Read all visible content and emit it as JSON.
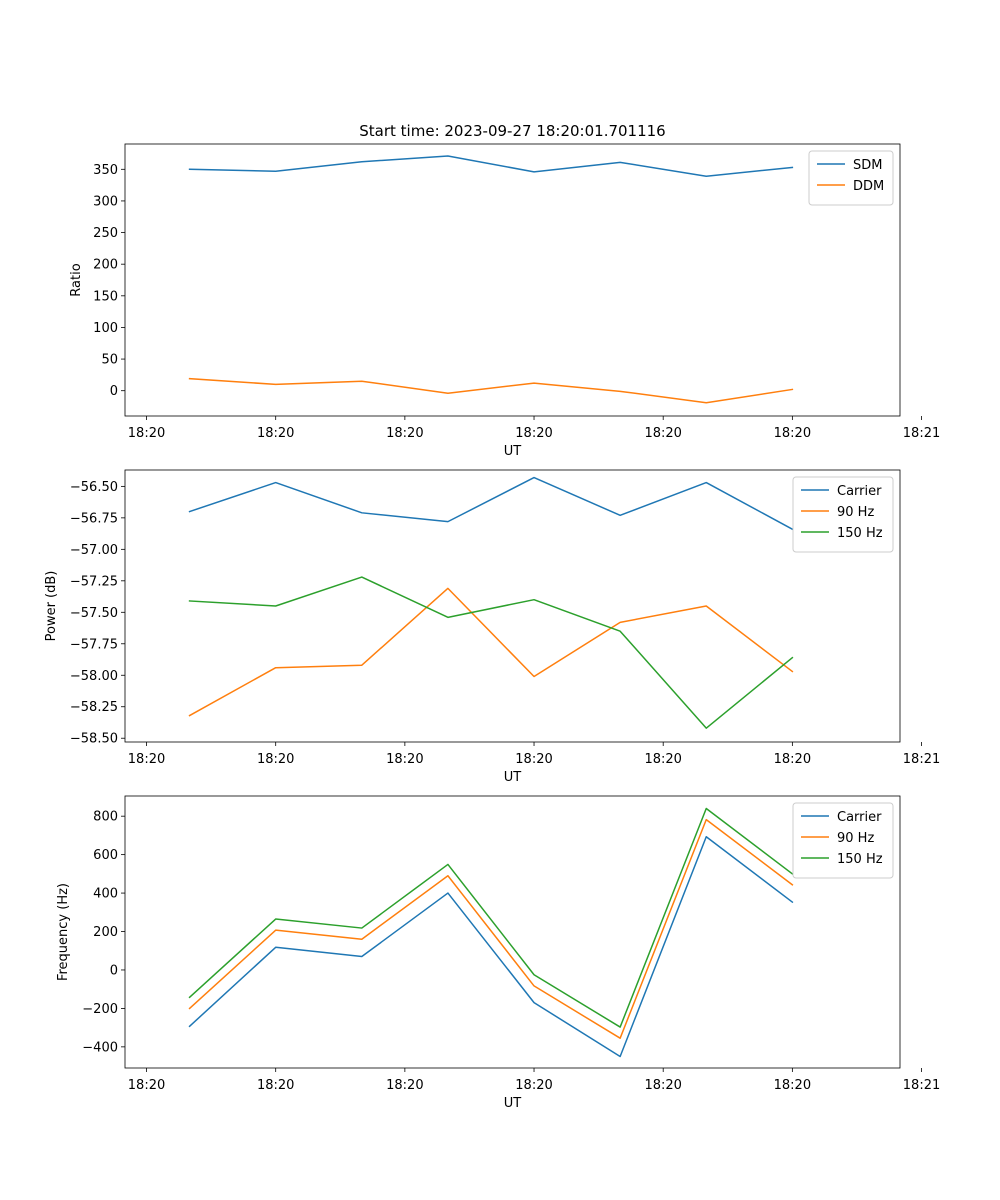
{
  "chart_data": [
    {
      "type": "line",
      "title": "Start time: 2023-09-27 18:20:01.701116",
      "xlabel": "UT",
      "ylabel": "Ratio",
      "x": [
        1,
        2,
        3,
        4,
        5,
        6,
        7,
        8
      ],
      "xlim": [
        0.25,
        9.25
      ],
      "x_ticks": [
        0.5,
        2.0,
        3.5,
        5.0,
        6.5,
        8.0,
        9.5
      ],
      "x_tick_labels": [
        "18:20",
        "18:20",
        "18:20",
        "18:20",
        "18:20",
        "18:20",
        "18:21"
      ],
      "ylim": [
        -40,
        390
      ],
      "y_ticks": [
        0,
        50,
        100,
        150,
        200,
        250,
        300,
        350
      ],
      "y_tick_labels": [
        "0",
        "50",
        "100",
        "150",
        "200",
        "250",
        "300",
        "350"
      ],
      "legend": "top-right",
      "series": [
        {
          "name": "SDM",
          "color": "#1f77b4",
          "values": [
            350,
            347,
            362,
            371,
            346,
            361,
            339,
            353
          ]
        },
        {
          "name": "DDM",
          "color": "#ff7f0e",
          "values": [
            19,
            10,
            15,
            -4,
            12,
            -1,
            -19,
            2
          ]
        }
      ]
    },
    {
      "type": "line",
      "title": "",
      "xlabel": "UT",
      "ylabel": "Power (dB)",
      "x": [
        1,
        2,
        3,
        4,
        5,
        6,
        7,
        8
      ],
      "xlim": [
        0.25,
        9.25
      ],
      "x_ticks": [
        0.5,
        2.0,
        3.5,
        5.0,
        6.5,
        8.0,
        9.5
      ],
      "x_tick_labels": [
        "18:20",
        "18:20",
        "18:20",
        "18:20",
        "18:20",
        "18:20",
        "18:21"
      ],
      "ylim": [
        -58.53,
        -56.37
      ],
      "y_ticks": [
        -58.5,
        -58.25,
        -58.0,
        -57.75,
        -57.5,
        -57.25,
        -57.0,
        -56.75,
        -56.5
      ],
      "y_tick_labels": [
        "−58.50",
        "−58.25",
        "−58.00",
        "−57.75",
        "−57.50",
        "−57.25",
        "−57.00",
        "−56.75",
        "−56.50"
      ],
      "legend": "top-right",
      "series": [
        {
          "name": "Carrier",
          "color": "#1f77b4",
          "values": [
            -56.7,
            -56.47,
            -56.71,
            -56.78,
            -56.43,
            -56.73,
            -56.47,
            -56.84
          ]
        },
        {
          "name": "90 Hz",
          "color": "#ff7f0e",
          "values": [
            -58.32,
            -57.94,
            -57.92,
            -57.31,
            -58.01,
            -57.58,
            -57.45,
            -57.97
          ]
        },
        {
          "name": "150 Hz",
          "color": "#2ca02c",
          "values": [
            -57.41,
            -57.45,
            -57.22,
            -57.54,
            -57.4,
            -57.65,
            -58.42,
            -57.86
          ]
        }
      ]
    },
    {
      "type": "line",
      "title": "",
      "xlabel": "UT",
      "ylabel": "Frequency (Hz)",
      "x": [
        1,
        2,
        3,
        4,
        5,
        6,
        7,
        8
      ],
      "xlim": [
        0.25,
        9.25
      ],
      "x_ticks": [
        0.5,
        2.0,
        3.5,
        5.0,
        6.5,
        8.0,
        9.5
      ],
      "x_tick_labels": [
        "18:20",
        "18:20",
        "18:20",
        "18:20",
        "18:20",
        "18:20",
        "18:21"
      ],
      "ylim": [
        -510,
        905
      ],
      "y_ticks": [
        -400,
        -200,
        0,
        200,
        400,
        600,
        800
      ],
      "y_tick_labels": [
        "−400",
        "−200",
        "0",
        "200",
        "400",
        "600",
        "800"
      ],
      "legend": "top-right",
      "series": [
        {
          "name": "Carrier",
          "color": "#1f77b4",
          "values": [
            -293,
            118,
            70,
            400,
            -170,
            -450,
            693,
            353
          ]
        },
        {
          "name": "90 Hz",
          "color": "#ff7f0e",
          "values": [
            -200,
            207,
            160,
            490,
            -83,
            -355,
            782,
            443
          ]
        },
        {
          "name": "150 Hz",
          "color": "#2ca02c",
          "values": [
            -142,
            265,
            218,
            549,
            -25,
            -297,
            840,
            500
          ]
        }
      ]
    }
  ]
}
